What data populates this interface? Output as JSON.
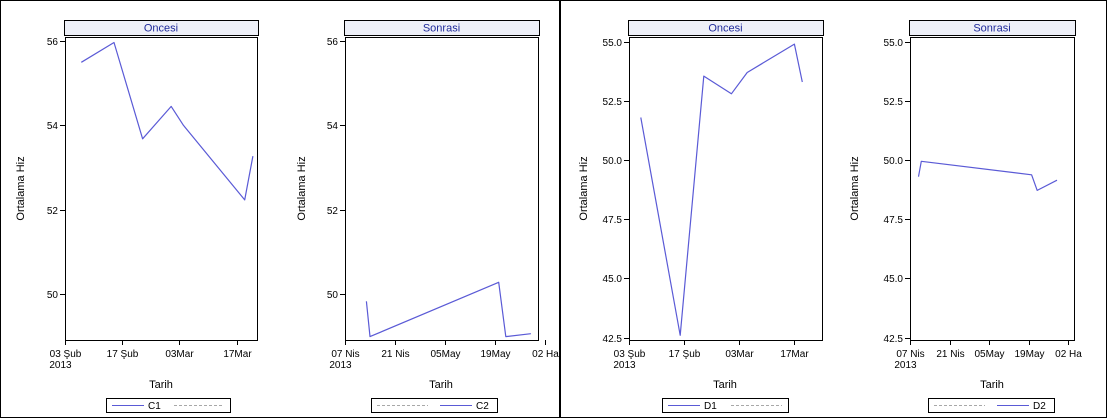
{
  "colors": {
    "line": "#5a5ad6",
    "legend_dash": "#a8a8a8",
    "strip_fill": "#eef0f8",
    "frame": "#000000"
  },
  "chart_data": [
    {
      "type": "line",
      "panel": "Oncesi",
      "xlabel": "Tarih",
      "ylabel": "Ortalama Hiz",
      "ylim": [
        48.9,
        56.1
      ],
      "xlim": [
        "2013-02-03",
        "2013-03-22"
      ],
      "yticks": [
        "50",
        "52",
        "54",
        "56"
      ],
      "ytick_values": [
        50,
        52,
        54,
        56
      ],
      "xticks": [
        {
          "date": "2013-02-03",
          "label": "03 Şub",
          "label2": "2013"
        },
        {
          "date": "2013-02-17",
          "label": "17 Şub"
        },
        {
          "date": "2013-03-03",
          "label": "03Mar"
        },
        {
          "date": "2013-03-17",
          "label": "17Mar"
        }
      ],
      "series": [
        {
          "x": [
            "2013-02-07",
            "2013-02-15",
            "2013-02-22",
            "2013-03-01",
            "2013-03-04",
            "2013-03-19",
            "2013-03-21"
          ],
          "y": [
            55.5,
            55.97,
            53.68,
            54.45,
            54.0,
            52.23,
            53.27
          ]
        }
      ],
      "legend": [
        {
          "label": "C1",
          "style": "solid"
        },
        {
          "label": "",
          "style": "dashed"
        }
      ]
    },
    {
      "type": "line",
      "panel": "Sonrasi",
      "xlabel": "Tarih",
      "ylabel": "Ortalama Hiz",
      "ylim": [
        48.9,
        56.1
      ],
      "xlim": [
        "2013-04-07",
        "2013-05-31"
      ],
      "yticks": [
        "50",
        "52",
        "54",
        "56"
      ],
      "ytick_values": [
        50,
        52,
        54,
        56
      ],
      "xticks": [
        {
          "date": "2013-04-07",
          "label": "07 Nis",
          "label2": "2013"
        },
        {
          "date": "2013-04-21",
          "label": "21 Nis"
        },
        {
          "date": "2013-05-05",
          "label": "05May"
        },
        {
          "date": "2013-05-19",
          "label": "19May"
        },
        {
          "date": "2013-06-02",
          "label": "02 Ha"
        }
      ],
      "series": [
        {
          "x": [
            "2013-04-13",
            "2013-04-14",
            "2013-05-20",
            "2013-05-22",
            "2013-05-29"
          ],
          "y": [
            49.82,
            48.98,
            50.27,
            48.98,
            49.05
          ]
        }
      ],
      "legend": [
        {
          "label": "",
          "style": "dashed"
        },
        {
          "label": "C2",
          "style": "solid"
        }
      ]
    },
    {
      "type": "line",
      "panel": "Oncesi",
      "xlabel": "Tarih",
      "ylabel": "Ortalama Hiz",
      "ylim": [
        42.4,
        55.2
      ],
      "xlim": [
        "2013-02-03",
        "2013-03-24"
      ],
      "yticks": [
        "42.5",
        "45.0",
        "47.5",
        "50.0",
        "52.5",
        "55.0"
      ],
      "ytick_values": [
        42.5,
        45.0,
        47.5,
        50.0,
        52.5,
        55.0
      ],
      "xticks": [
        {
          "date": "2013-02-03",
          "label": "03 Şub",
          "label2": "2013"
        },
        {
          "date": "2013-02-17",
          "label": "17 Şub"
        },
        {
          "date": "2013-03-03",
          "label": "03Mar"
        },
        {
          "date": "2013-03-17",
          "label": "17Mar"
        }
      ],
      "series": [
        {
          "x": [
            "2013-02-06",
            "2013-02-16",
            "2013-02-22",
            "2013-03-01",
            "2013-03-05",
            "2013-03-17",
            "2013-03-19"
          ],
          "y": [
            51.8,
            42.6,
            53.55,
            52.8,
            53.7,
            54.9,
            53.3
          ]
        }
      ],
      "legend": [
        {
          "label": "D1",
          "style": "solid"
        },
        {
          "label": "",
          "style": "dashed"
        }
      ]
    },
    {
      "type": "line",
      "panel": "Sonrasi",
      "xlabel": "Tarih",
      "ylabel": "Ortalama Hiz",
      "ylim": [
        42.4,
        55.2
      ],
      "xlim": [
        "2013-04-07",
        "2013-06-04"
      ],
      "yticks": [
        "42.5",
        "45.0",
        "47.5",
        "50.0",
        "52.5",
        "55.0"
      ],
      "ytick_values": [
        42.5,
        45.0,
        47.5,
        50.0,
        52.5,
        55.0
      ],
      "xticks": [
        {
          "date": "2013-04-07",
          "label": "07 Nis",
          "label2": "2013"
        },
        {
          "date": "2013-04-21",
          "label": "21 Nis"
        },
        {
          "date": "2013-05-05",
          "label": "05May"
        },
        {
          "date": "2013-05-19",
          "label": "19May"
        },
        {
          "date": "2013-06-02",
          "label": "02 Ha"
        }
      ],
      "series": [
        {
          "x": [
            "2013-04-10",
            "2013-04-11",
            "2013-05-20",
            "2013-05-22",
            "2013-05-29"
          ],
          "y": [
            49.3,
            49.95,
            49.38,
            48.72,
            49.15
          ]
        }
      ],
      "legend": [
        {
          "label": "",
          "style": "dashed"
        },
        {
          "label": "D2",
          "style": "solid"
        }
      ]
    }
  ]
}
